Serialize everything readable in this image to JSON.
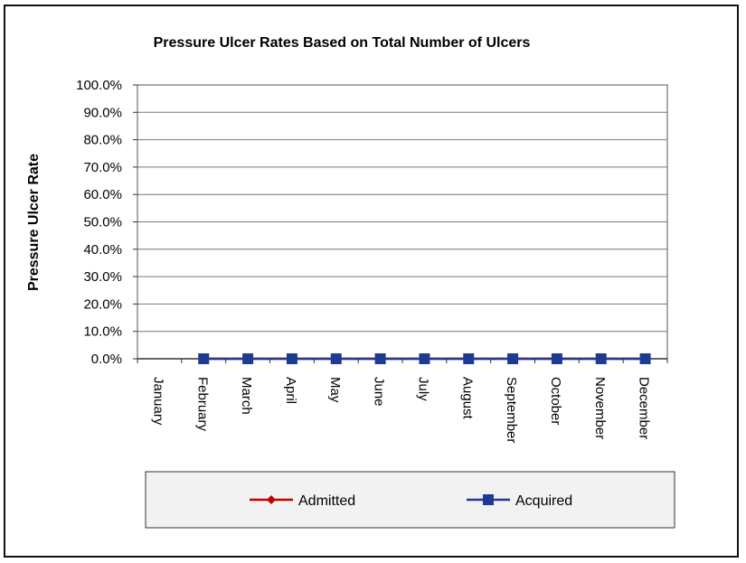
{
  "chart_data": {
    "type": "line",
    "title": "Pressure Ulcer Rates Based on Total Number of Ulcers",
    "xlabel": "",
    "ylabel": "Pressure Ulcer Rate",
    "categories": [
      "January",
      "February",
      "March",
      "April",
      "May",
      "June",
      "July",
      "August",
      "September",
      "October",
      "November",
      "December"
    ],
    "y_ticks": [
      "100.0%",
      "90.0%",
      "80.0%",
      "70.0%",
      "60.0%",
      "50.0%",
      "40.0%",
      "30.0%",
      "20.0%",
      "10.0%",
      "0.0%"
    ],
    "ylim": [
      0,
      100
    ],
    "grid": true,
    "legend_position": "bottom",
    "series": [
      {
        "name": "Admitted",
        "color": "#c00000",
        "marker": "diamond",
        "values": [
          null,
          0,
          0,
          0,
          0,
          0,
          0,
          0,
          0,
          0,
          0,
          0
        ]
      },
      {
        "name": "Acquired",
        "color": "#1f3a93",
        "marker": "square",
        "values": [
          null,
          0,
          0,
          0,
          0,
          0,
          0,
          0,
          0,
          0,
          0,
          0
        ]
      }
    ]
  }
}
